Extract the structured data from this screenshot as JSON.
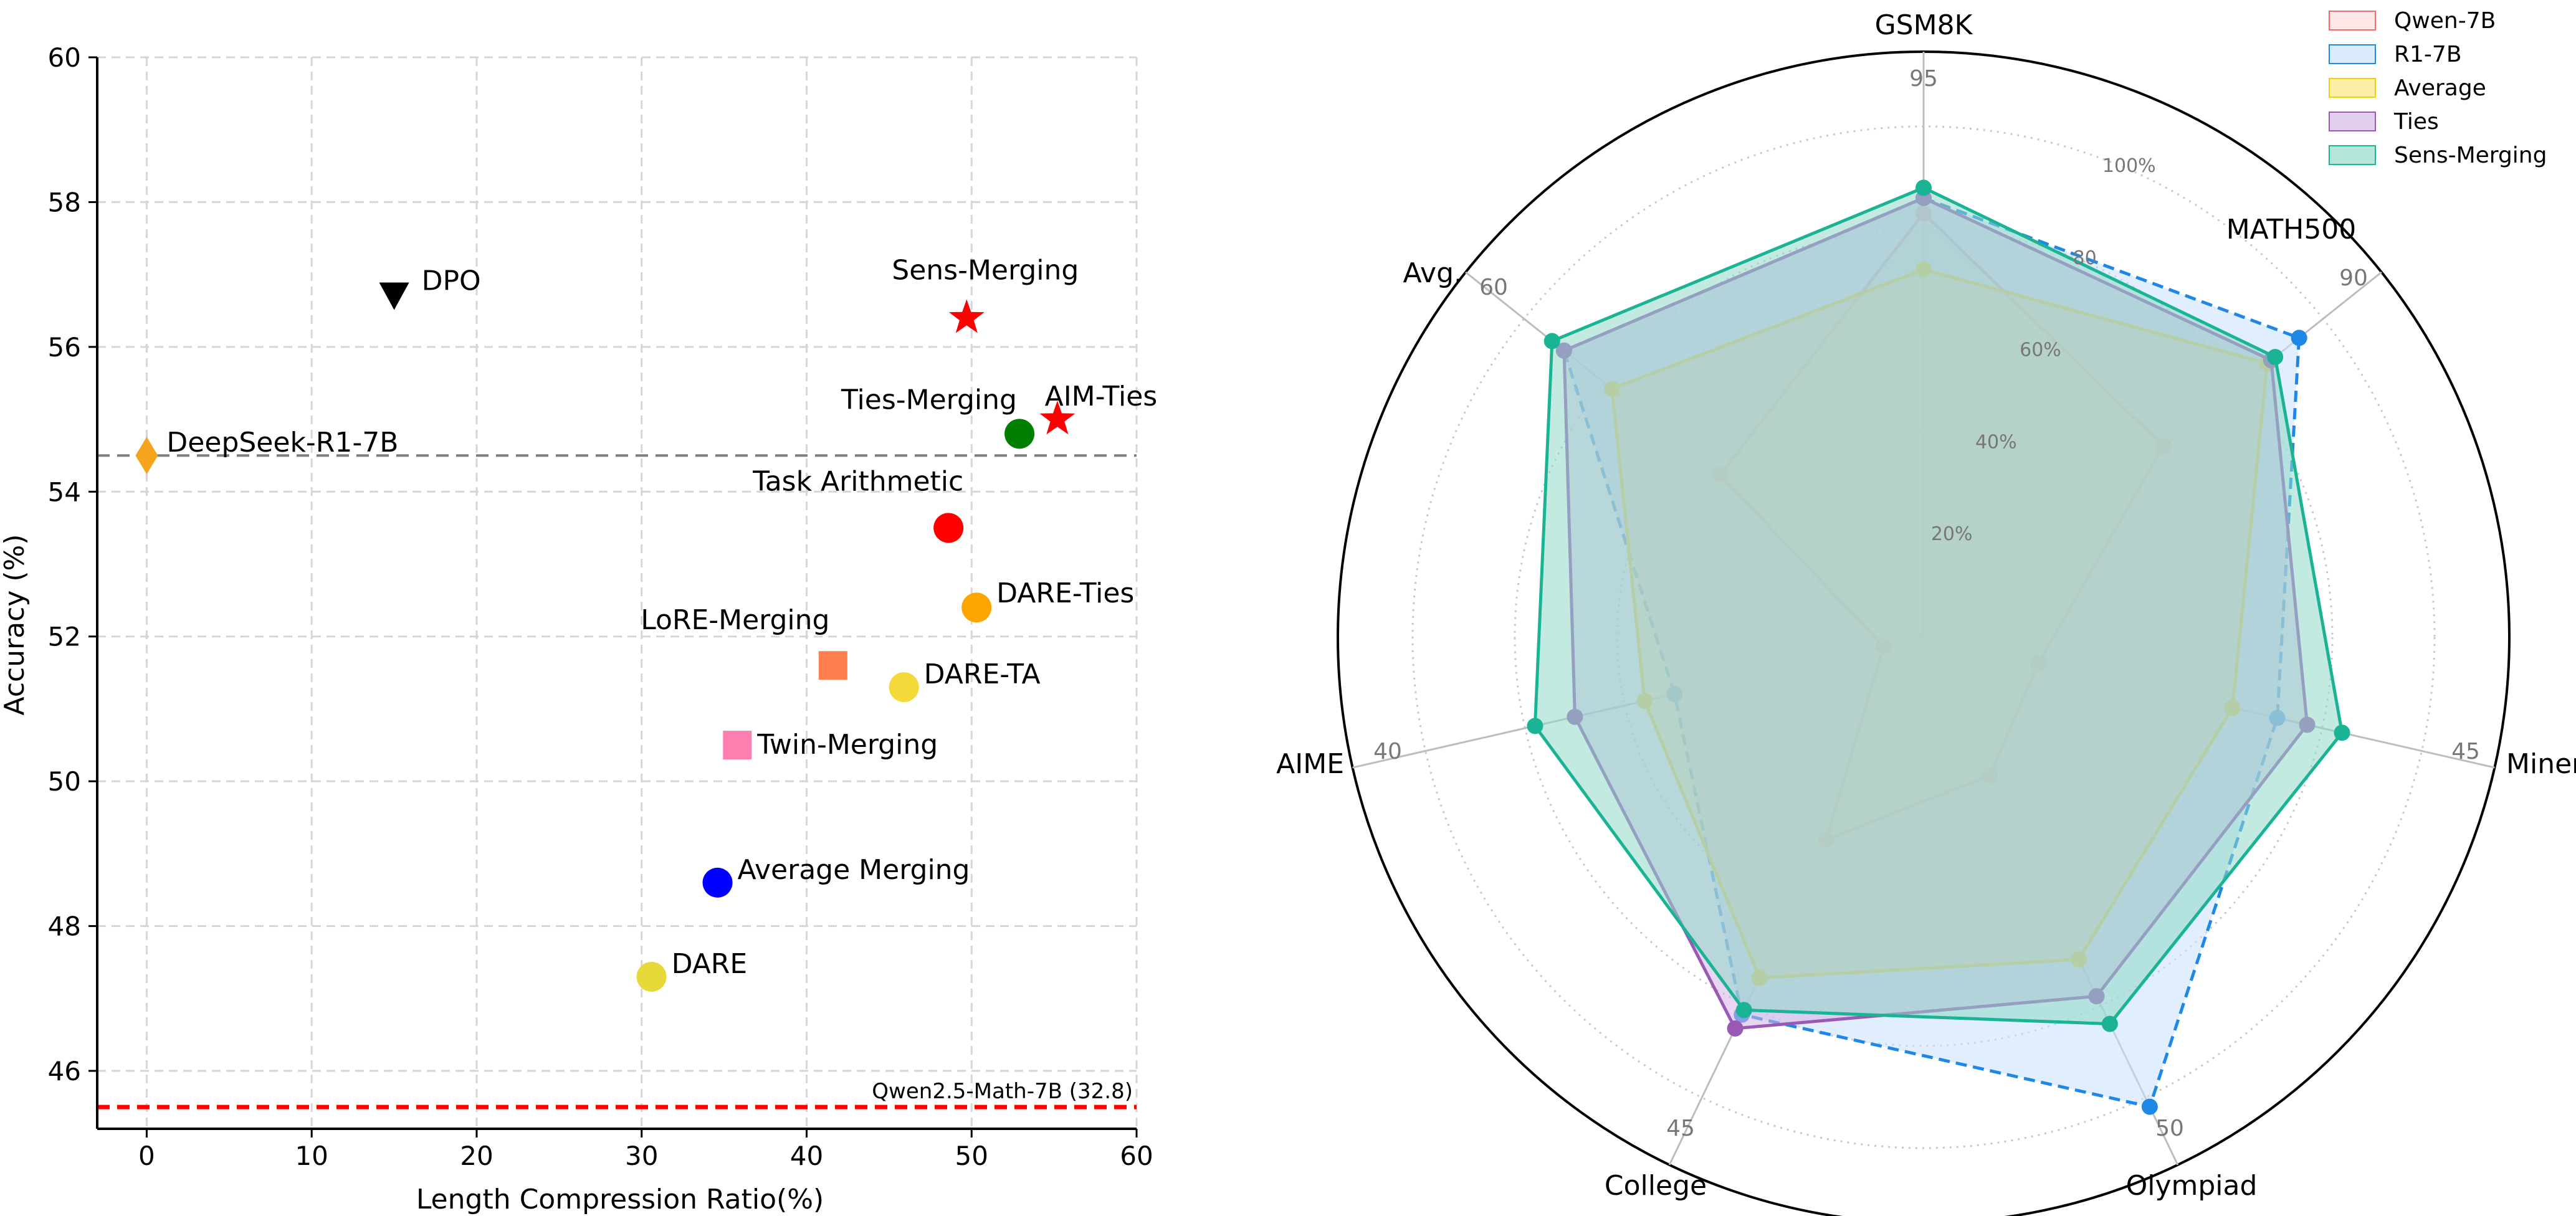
{
  "chart_data": [
    {
      "type": "scatter",
      "xlabel": "Length Compression Ratio(%)",
      "ylabel": "Accuracy (%)",
      "xlim": [
        -3,
        60
      ],
      "ylim": [
        45.2,
        60
      ],
      "xticks": [
        0,
        10,
        20,
        30,
        40,
        50,
        60
      ],
      "yticks": [
        46,
        48,
        50,
        52,
        54,
        56,
        58,
        60
      ],
      "grid": true,
      "reference_lines": [
        {
          "y": 54.5,
          "style": "dashed",
          "color": "#7f7f7f",
          "label": ""
        },
        {
          "y": 45.5,
          "style": "dashed",
          "color": "#ff0000",
          "label": "Qwen2.5-Math-7B (32.8)"
        }
      ],
      "points": [
        {
          "label": "DPO",
          "x": 15,
          "y": 56.7,
          "marker": "triangle-down",
          "color": "#000000"
        },
        {
          "label": "Sens-Merging",
          "x": 49.7,
          "y": 56.4,
          "marker": "star",
          "color": "#ff0000"
        },
        {
          "label": "DeepSeek-R1-7B",
          "x": 0,
          "y": 54.5,
          "marker": "diamond",
          "color": "#f5a41d"
        },
        {
          "label": "AIM-Ties",
          "x": 55.2,
          "y": 55.0,
          "marker": "star",
          "color": "#ff0000"
        },
        {
          "label": "Ties-Merging",
          "x": 52.9,
          "y": 54.8,
          "marker": "circle",
          "color": "#007f00"
        },
        {
          "label": "Task Arithmetic",
          "x": 48.6,
          "y": 53.5,
          "marker": "circle",
          "color": "#ff0000"
        },
        {
          "label": "DARE-Ties",
          "x": 50.3,
          "y": 52.4,
          "marker": "circle",
          "color": "#ffa500"
        },
        {
          "label": "LoRE-Merging",
          "x": 41.6,
          "y": 51.6,
          "marker": "square",
          "color": "#ff7f50"
        },
        {
          "label": "DARE-TA",
          "x": 45.9,
          "y": 51.3,
          "marker": "circle",
          "color": "#f4d93a"
        },
        {
          "label": "Twin-Merging",
          "x": 35.8,
          "y": 50.5,
          "marker": "square",
          "color": "#ff7fb0"
        },
        {
          "label": "Average Merging",
          "x": 34.6,
          "y": 48.6,
          "marker": "circle",
          "color": "#0000ff"
        },
        {
          "label": "DARE",
          "x": 30.6,
          "y": 47.3,
          "marker": "circle",
          "color": "#e8d93a"
        }
      ]
    },
    {
      "type": "radar",
      "axes": [
        "GSM8K",
        "MATH500",
        "Minerva",
        "Olympiad",
        "College",
        "AIME",
        "Avg."
      ],
      "axis_reference_labels": [
        "95",
        "90",
        "45",
        "50",
        "45",
        "40",
        "60"
      ],
      "radial_ticks": [
        "20%",
        "40%",
        "60%",
        "80",
        "100%"
      ],
      "radial_tick_values": [
        0.2,
        0.4,
        0.6,
        0.8,
        1.0
      ],
      "legend_position": "top-right",
      "series": [
        {
          "name": "Qwen-7B",
          "color": "#f26b6b",
          "fill": "#ffd9d9",
          "line": "solid",
          "values": [
            0.83,
            0.6,
            0.23,
            0.3,
            0.44,
            0.08,
            0.51
          ]
        },
        {
          "name": "R1-7B",
          "color": "#1f87e6",
          "fill": "#c7e0fb",
          "line": "dashed",
          "values": [
            0.86,
            0.94,
            0.71,
            1.02,
            0.82,
            0.5,
            0.9
          ]
        },
        {
          "name": "Average",
          "color": "#f5d000",
          "fill": "#fbe37a",
          "line": "solid",
          "values": [
            0.72,
            0.86,
            0.62,
            0.7,
            0.74,
            0.56,
            0.78
          ]
        },
        {
          "name": "Ties",
          "color": "#9b59b6",
          "fill": "#d6b3e6",
          "line": "solid",
          "values": [
            0.86,
            0.87,
            0.77,
            0.78,
            0.85,
            0.7,
            0.9
          ]
        },
        {
          "name": "Sens-Merging",
          "color": "#1ab394",
          "fill": "#8fd9c6",
          "line": "solid",
          "values": [
            0.88,
            0.88,
            0.84,
            0.84,
            0.81,
            0.78,
            0.93
          ]
        }
      ]
    }
  ]
}
